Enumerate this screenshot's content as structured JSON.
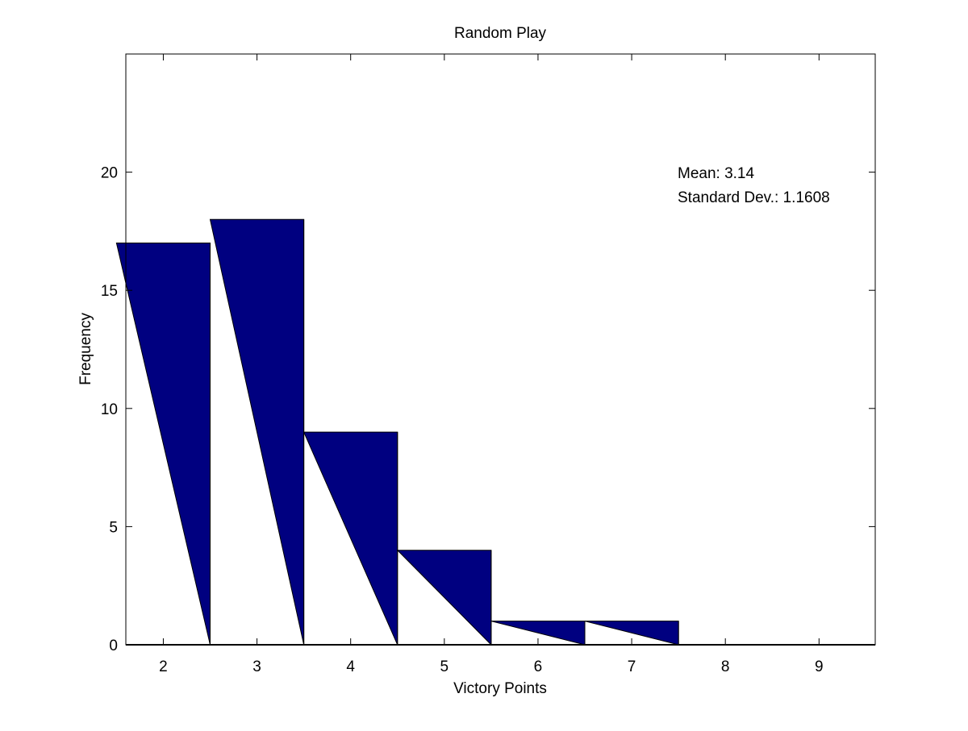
{
  "chart_data": {
    "type": "bar",
    "title": "Random Play",
    "xlabel": "Victory Points",
    "ylabel": "Frequency",
    "categories": [
      2,
      3,
      4,
      5,
      6,
      7,
      8,
      9
    ],
    "values": [
      17,
      18,
      9,
      4,
      1,
      1,
      0,
      0
    ],
    "xlim": [
      1.6,
      9.6
    ],
    "ylim": [
      0,
      25
    ],
    "xticks": [
      "2",
      "3",
      "4",
      "5",
      "6",
      "7",
      "8",
      "9"
    ],
    "yticks": [
      "0",
      "5",
      "10",
      "15",
      "20"
    ],
    "grid": false,
    "annotations": [
      "Mean: 3.14",
      "Standard Dev.: 1.1608"
    ],
    "bar_color": "#000080"
  }
}
